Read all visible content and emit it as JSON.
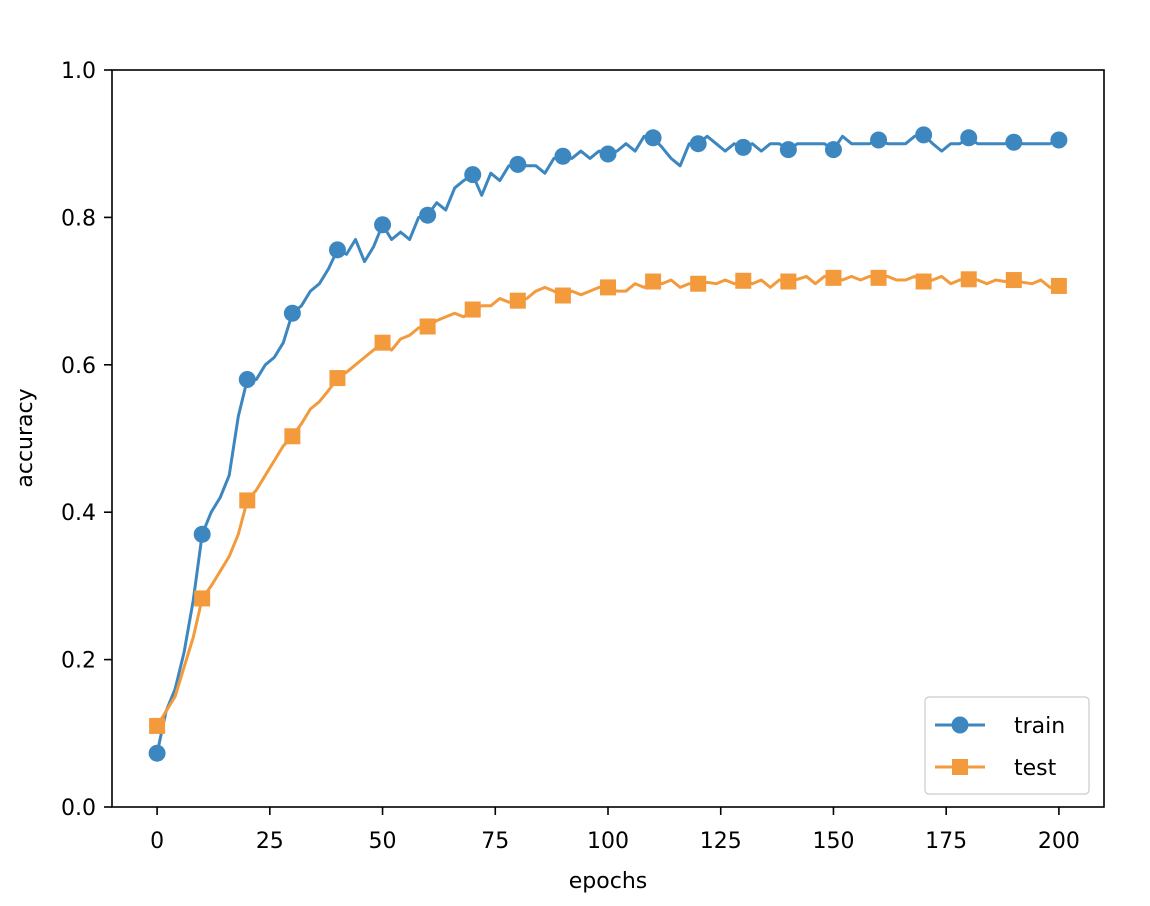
{
  "chart_data": {
    "type": "line",
    "xlabel": "epochs",
    "ylabel": "accuracy",
    "xlim": [
      -10,
      210
    ],
    "ylim": [
      0.0,
      1.0
    ],
    "x_ticks": [
      0,
      25,
      50,
      75,
      100,
      125,
      150,
      175,
      200
    ],
    "x_tick_labels": [
      "0",
      "25",
      "50",
      "75",
      "100",
      "125",
      "150",
      "175",
      "200"
    ],
    "y_ticks": [
      0.0,
      0.2,
      0.4,
      0.6,
      0.8,
      1.0
    ],
    "y_tick_labels": [
      "0.0",
      "0.2",
      "0.4",
      "0.6",
      "0.8",
      "1.0"
    ],
    "grid": false,
    "legend_position": "lower-right",
    "series": [
      {
        "name": "train",
        "color": "#3d87c0",
        "marker": "circle",
        "marker_every": 10,
        "x": [
          0,
          2,
          4,
          6,
          8,
          10,
          12,
          14,
          16,
          18,
          20,
          22,
          24,
          26,
          28,
          30,
          32,
          34,
          36,
          38,
          40,
          42,
          44,
          46,
          48,
          50,
          52,
          54,
          56,
          58,
          60,
          62,
          64,
          66,
          68,
          70,
          72,
          74,
          76,
          78,
          80,
          82,
          84,
          86,
          88,
          90,
          92,
          94,
          96,
          98,
          100,
          102,
          104,
          106,
          108,
          110,
          112,
          114,
          116,
          118,
          120,
          122,
          124,
          126,
          128,
          130,
          132,
          134,
          136,
          138,
          140,
          142,
          144,
          146,
          148,
          150,
          152,
          154,
          156,
          158,
          160,
          162,
          164,
          166,
          168,
          170,
          172,
          174,
          176,
          178,
          180,
          182,
          184,
          186,
          188,
          190,
          192,
          194,
          196,
          198,
          200
        ],
        "values": [
          0.073,
          0.13,
          0.16,
          0.21,
          0.28,
          0.37,
          0.4,
          0.42,
          0.45,
          0.53,
          0.58,
          0.58,
          0.6,
          0.61,
          0.63,
          0.67,
          0.68,
          0.7,
          0.71,
          0.73,
          0.756,
          0.75,
          0.77,
          0.74,
          0.76,
          0.79,
          0.77,
          0.78,
          0.77,
          0.8,
          0.803,
          0.82,
          0.81,
          0.84,
          0.85,
          0.858,
          0.83,
          0.86,
          0.85,
          0.87,
          0.872,
          0.87,
          0.87,
          0.86,
          0.88,
          0.883,
          0.88,
          0.89,
          0.88,
          0.89,
          0.886,
          0.89,
          0.9,
          0.89,
          0.91,
          0.908,
          0.895,
          0.88,
          0.87,
          0.9,
          0.9,
          0.91,
          0.9,
          0.89,
          0.9,
          0.895,
          0.9,
          0.89,
          0.9,
          0.9,
          0.892,
          0.9,
          0.9,
          0.9,
          0.9,
          0.892,
          0.91,
          0.9,
          0.9,
          0.9,
          0.905,
          0.9,
          0.9,
          0.9,
          0.91,
          0.912,
          0.9,
          0.89,
          0.9,
          0.9,
          0.908,
          0.9,
          0.9,
          0.9,
          0.9,
          0.902,
          0.9,
          0.9,
          0.9,
          0.9,
          0.905
        ]
      },
      {
        "name": "test",
        "color": "#f39a3c",
        "marker": "square",
        "marker_every": 10,
        "x": [
          0,
          2,
          4,
          6,
          8,
          10,
          12,
          14,
          16,
          18,
          20,
          22,
          24,
          26,
          28,
          30,
          32,
          34,
          36,
          38,
          40,
          42,
          44,
          46,
          48,
          50,
          52,
          54,
          56,
          58,
          60,
          62,
          64,
          66,
          68,
          70,
          72,
          74,
          76,
          78,
          80,
          82,
          84,
          86,
          88,
          90,
          92,
          94,
          96,
          98,
          100,
          102,
          104,
          106,
          108,
          110,
          112,
          114,
          116,
          118,
          120,
          122,
          124,
          126,
          128,
          130,
          132,
          134,
          136,
          138,
          140,
          142,
          144,
          146,
          148,
          150,
          152,
          154,
          156,
          158,
          160,
          162,
          164,
          166,
          168,
          170,
          172,
          174,
          176,
          178,
          180,
          182,
          184,
          186,
          188,
          190,
          192,
          194,
          196,
          198,
          200
        ],
        "values": [
          0.11,
          0.13,
          0.15,
          0.19,
          0.23,
          0.283,
          0.3,
          0.32,
          0.34,
          0.37,
          0.416,
          0.43,
          0.45,
          0.47,
          0.49,
          0.503,
          0.52,
          0.54,
          0.55,
          0.565,
          0.582,
          0.59,
          0.6,
          0.61,
          0.62,
          0.63,
          0.62,
          0.635,
          0.64,
          0.65,
          0.652,
          0.66,
          0.665,
          0.67,
          0.665,
          0.675,
          0.68,
          0.68,
          0.69,
          0.685,
          0.687,
          0.69,
          0.7,
          0.705,
          0.7,
          0.694,
          0.7,
          0.695,
          0.7,
          0.705,
          0.705,
          0.7,
          0.7,
          0.71,
          0.705,
          0.713,
          0.71,
          0.715,
          0.705,
          0.71,
          0.71,
          0.712,
          0.71,
          0.715,
          0.71,
          0.714,
          0.71,
          0.715,
          0.705,
          0.715,
          0.713,
          0.716,
          0.72,
          0.71,
          0.72,
          0.718,
          0.715,
          0.72,
          0.715,
          0.72,
          0.718,
          0.72,
          0.715,
          0.715,
          0.72,
          0.713,
          0.715,
          0.72,
          0.71,
          0.715,
          0.716,
          0.715,
          0.71,
          0.715,
          0.713,
          0.715,
          0.712,
          0.71,
          0.715,
          0.705,
          0.707
        ]
      }
    ]
  }
}
